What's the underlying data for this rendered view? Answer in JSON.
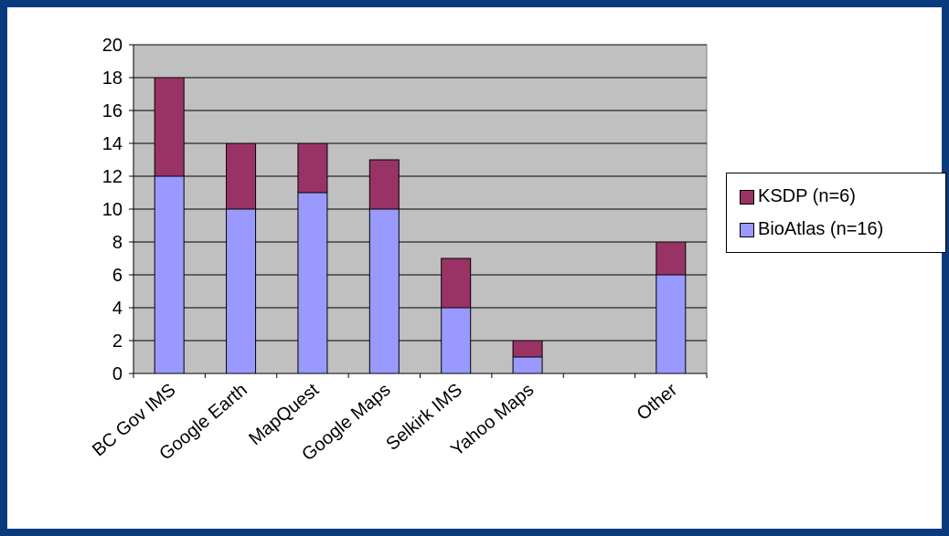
{
  "chart_data": {
    "type": "bar",
    "stacked": true,
    "title": "",
    "xlabel": "",
    "ylabel": "",
    "ylim": [
      0,
      20
    ],
    "yticks": [
      0,
      2,
      4,
      6,
      8,
      10,
      12,
      14,
      16,
      18,
      20
    ],
    "grid": true,
    "legend_position": "right",
    "categories": [
      "BC Gov IMS",
      "Google Earth",
      "MapQuest",
      "Google Maps",
      "Selkirk IMS",
      "Yahoo Maps",
      "",
      "Other"
    ],
    "series": [
      {
        "name": "BioAtlas (n=16)",
        "color": "#9999ff",
        "values": [
          12,
          10,
          11,
          10,
          4,
          1,
          0,
          6
        ]
      },
      {
        "name": "KSDP (n=6)",
        "color": "#993366",
        "values": [
          6,
          4,
          3,
          3,
          3,
          1,
          0,
          2
        ]
      }
    ],
    "plot_background": "#c0c0c0"
  },
  "legend": {
    "items": [
      {
        "label": "KSDP (n=6)",
        "color": "#993366"
      },
      {
        "label": "BioAtlas (n=16)",
        "color": "#9999ff"
      }
    ]
  }
}
